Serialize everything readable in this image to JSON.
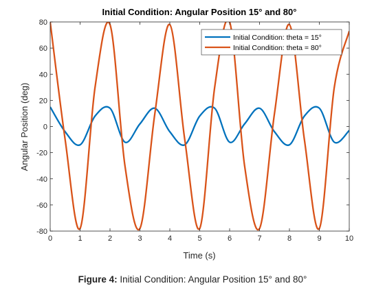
{
  "chart_data": {
    "type": "line",
    "title": "Initial Condition: Angular Position 15° and 80°",
    "xlabel": "Time (s)",
    "ylabel": "Angular Position (deg)",
    "xlim": [
      0,
      10
    ],
    "ylim": [
      -80,
      80
    ],
    "xticks": [
      0,
      1,
      2,
      3,
      4,
      5,
      6,
      7,
      8,
      9,
      10
    ],
    "yticks": [
      -80,
      -60,
      -40,
      -20,
      0,
      20,
      40,
      60,
      80
    ],
    "grid": false,
    "legend_position": "top-right",
    "series": [
      {
        "name": "Initial Condition: theta = 15°",
        "color": "#0072BD",
        "x": [
          0,
          0.5,
          1.0,
          1.5,
          2.0,
          2.5,
          3.0,
          3.5,
          4.0,
          4.5,
          5.0,
          5.5,
          6.0,
          6.5,
          7.0,
          7.5,
          8.0,
          8.5,
          9.0,
          9.5,
          10.0
        ],
        "y": [
          15,
          -4,
          -14,
          8,
          14,
          -12,
          2,
          14,
          -4,
          -14,
          8,
          14,
          -12,
          2,
          14,
          -4,
          -14,
          8,
          14,
          -12,
          -3
        ]
      },
      {
        "name": "Initial Condition: theta = 80°",
        "color": "#D95319",
        "x": [
          0,
          0.5,
          1.0,
          1.5,
          2.0,
          2.5,
          3.0,
          3.5,
          4.0,
          4.5,
          5.0,
          5.5,
          6.0,
          6.5,
          7.0,
          7.5,
          8.0,
          8.5,
          9.0,
          9.5,
          10.0
        ],
        "y": [
          80,
          -10,
          -78,
          30,
          78,
          -30,
          -78,
          10,
          78,
          -10,
          -78,
          30,
          80,
          -30,
          -78,
          10,
          78,
          -10,
          -78,
          30,
          73
        ]
      }
    ]
  },
  "caption": {
    "label": "Figure 4:",
    "text": " Initial Condition: Angular Position 15° and 80°"
  }
}
